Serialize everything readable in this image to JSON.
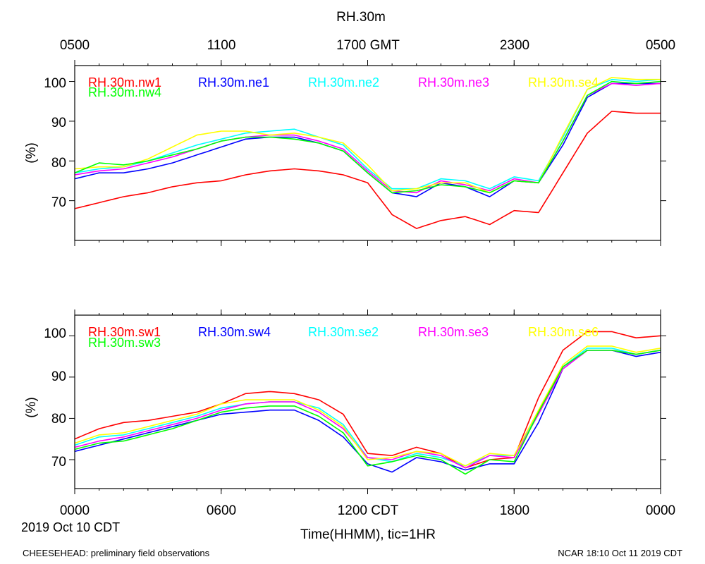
{
  "chart_data": {
    "type": "line",
    "title": "RH.30m",
    "x": [
      0,
      1,
      2,
      3,
      4,
      5,
      6,
      7,
      8,
      9,
      10,
      11,
      12,
      13,
      14,
      15,
      16,
      17,
      18,
      19,
      20,
      21,
      22,
      23,
      24
    ],
    "x_unit": "hours since 2019 Oct 10 0000 CDT",
    "xlim": [
      0,
      24
    ],
    "bottom_axis": {
      "ticks": [
        0,
        6,
        12,
        18,
        24
      ],
      "tick_labels": [
        "0000",
        "0600",
        "1200 CDT",
        "1800",
        "0000"
      ],
      "date_label": "2019 Oct 10 CDT",
      "xlabel": "Time(HHMM), tic=1HR"
    },
    "top_axis": {
      "ticks": [
        0,
        6,
        12,
        18,
        24
      ],
      "tick_labels": [
        "0500",
        "1100",
        "1700 GMT",
        "2300",
        "0500"
      ]
    },
    "panels": [
      {
        "ylabel": "(%)",
        "ylim": [
          60,
          104
        ],
        "yticks": [
          70,
          80,
          90,
          100
        ],
        "series": [
          {
            "name": "RH.30m.nw1",
            "color": "#ff0000",
            "values": [
              68,
              69.5,
              71,
              72,
              73.5,
              74.5,
              75,
              76.5,
              77.5,
              78,
              77.5,
              76.5,
              74.5,
              66.5,
              63,
              65,
              66,
              64,
              67.5,
              67,
              77,
              87,
              92.5,
              92,
              92
            ]
          },
          {
            "name": "RH.30m.ne1",
            "color": "#0000ff",
            "values": [
              75.5,
              77,
              77,
              78,
              79.5,
              81.5,
              83.5,
              85.5,
              86,
              86,
              84.5,
              82.5,
              77,
              72,
              71,
              74.5,
              73.5,
              71,
              75,
              74.5,
              84,
              96,
              99.5,
              99.5,
              99.5
            ]
          },
          {
            "name": "RH.30m.ne2",
            "color": "#00ffff",
            "values": [
              77,
              78,
              78.5,
              80,
              82,
              84,
              85.5,
              87,
              87.5,
              88,
              86,
              84,
              78,
              73,
              73,
              75.5,
              75,
              73,
              76,
              75,
              86,
              98,
              100.5,
              100,
              100.5
            ]
          },
          {
            "name": "RH.30m.ne3",
            "color": "#ff00ff",
            "values": [
              76.5,
              77.5,
              78,
              79.5,
              81,
              83,
              85,
              86,
              86.5,
              86.5,
              85,
              83,
              77.5,
              72.5,
              72,
              75,
              74,
              72.5,
              75.5,
              74.5,
              85,
              96.5,
              99.5,
              99,
              99.5
            ]
          },
          {
            "name": "RH.30m.se4",
            "color": "#ffff00",
            "values": [
              78,
              78.5,
              78.5,
              80.5,
              83.5,
              86.5,
              87.5,
              87.5,
              86.5,
              87,
              86,
              84.5,
              79,
              72.5,
              73,
              74.5,
              74.5,
              72,
              75,
              74.5,
              86.5,
              98,
              101,
              100.5,
              100.5
            ]
          },
          {
            "name": "RH.30m.nw4",
            "color": "#00ff00",
            "values": [
              77,
              79.5,
              79,
              80,
              81.5,
              83,
              85,
              86,
              86,
              85.5,
              84.5,
              82.5,
              77,
              72,
              72.5,
              74,
              73.5,
              72,
              75,
              74.5,
              85,
              96.5,
              100,
              99.5,
              100
            ]
          }
        ]
      },
      {
        "ylabel": "(%)",
        "ylim": [
          63,
          105
        ],
        "yticks": [
          70,
          80,
          90,
          100
        ],
        "series": [
          {
            "name": "RH.30m.sw1",
            "color": "#ff0000",
            "values": [
              75,
              77.5,
              79,
              79.5,
              80.5,
              81.5,
              83.5,
              86,
              86.5,
              86,
              84.5,
              81,
              71.5,
              71,
              73,
              71.5,
              68,
              70,
              70.5,
              85,
              96.5,
              101,
              101,
              99.5,
              100
            ]
          },
          {
            "name": "RH.30m.sw4",
            "color": "#0000ff",
            "values": [
              72,
              73.5,
              75,
              76.5,
              78,
              79.5,
              81,
              81.5,
              82,
              82,
              79.5,
              75.5,
              69,
              67,
              70.5,
              69.5,
              67.5,
              69,
              69,
              79,
              92,
              96.5,
              96.5,
              95,
              96
            ]
          },
          {
            "name": "RH.30m.se2",
            "color": "#00ffff",
            "values": [
              73.5,
              75.5,
              76,
              77.5,
              79,
              80.5,
              82.5,
              83.5,
              84,
              84,
              82.5,
              78.5,
              70.5,
              69.5,
              71.5,
              70.5,
              68.5,
              71,
              71,
              81.5,
              92.5,
              97,
              97,
              95.5,
              96.5
            ]
          },
          {
            "name": "RH.30m.se3",
            "color": "#ff00ff",
            "values": [
              73,
              74.5,
              75.5,
              77,
              78.5,
              80,
              82,
              83.5,
              84,
              84,
              81.5,
              77.5,
              70.5,
              70,
              72,
              71,
              68,
              71,
              70.5,
              81,
              92,
              96.5,
              96.5,
              95.5,
              96.5
            ]
          },
          {
            "name": "RH.30m.se6",
            "color": "#ffff00",
            "values": [
              74,
              76,
              76.5,
              78,
              79.5,
              81,
              83.5,
              84.5,
              84.5,
              84.5,
              82,
              78,
              70,
              70.5,
              72,
              71.5,
              68.5,
              71.5,
              71,
              82,
              93,
              97.5,
              97.5,
              96,
              97
            ]
          },
          {
            "name": "RH.30m.sw3",
            "color": "#00ff00",
            "values": [
              72.5,
              74,
              74.5,
              76,
              77.5,
              79.5,
              81.5,
              82.5,
              83,
              83,
              80.5,
              76.5,
              68.5,
              69.5,
              71,
              70,
              66.5,
              70,
              69.5,
              81.5,
              92.5,
              96.5,
              96.5,
              95.5,
              96.5
            ]
          }
        ]
      }
    ]
  },
  "footer": {
    "left": "CHEESEHEAD: preliminary field observations",
    "right": "NCAR 18:10 Oct 11 2019 CDT"
  }
}
